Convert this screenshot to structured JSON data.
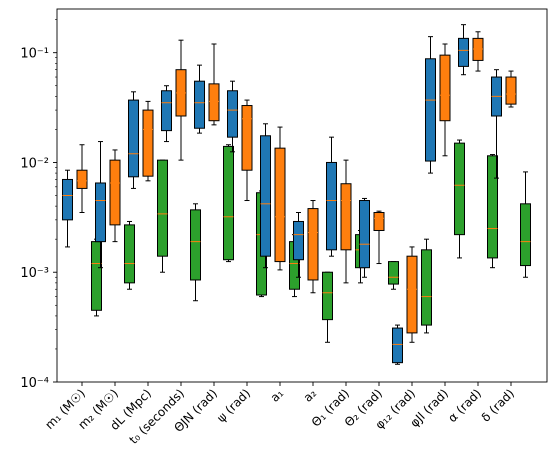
{
  "chart_data": {
    "type": "box",
    "yscale": "log",
    "ylim": [
      0.0001,
      0.25
    ],
    "y_ticks": [
      {
        "value": 0.0001,
        "label": "10⁻⁴"
      },
      {
        "value": 0.001,
        "label": "10⁻³"
      },
      {
        "value": 0.01,
        "label": "10⁻²"
      },
      {
        "value": 0.1,
        "label": "10⁻¹"
      }
    ],
    "categories": [
      "m₁ (M☉)",
      "m₂ (M☉)",
      "dL (Mpc)",
      "t₀ (seconds)",
      "ΘJN (rad)",
      "ψ (rad)",
      "a₁",
      "a₂",
      "Θ₁ (rad)",
      "Θ₂ (rad)",
      "φ₁₂ (rad)",
      "φJl (rad)",
      "α (rad)",
      "δ (rad)"
    ],
    "series_colors": [
      "#1f77b4",
      "#ff7f0e",
      "#2ca02c"
    ],
    "median_color": "#ff7f0e",
    "grid": false,
    "legend": "none",
    "boxes": [
      [
        {
          "whislo": 0.0017,
          "q1": 0.003,
          "med": 0.005,
          "q3": 0.007,
          "whishi": 0.0085
        },
        {
          "whislo": 0.0035,
          "q1": 0.0058,
          "med": 0.0068,
          "q3": 0.0085,
          "whishi": 0.0145
        },
        {
          "whislo": 0.0004,
          "q1": 0.00045,
          "med": 0.0012,
          "q3": 0.0019,
          "whishi": 0.002
        }
      ],
      [
        {
          "whislo": 0.0011,
          "q1": 0.0019,
          "med": 0.0045,
          "q3": 0.0065,
          "whishi": 0.0155
        },
        {
          "whislo": 0.0019,
          "q1": 0.0027,
          "med": 0.0065,
          "q3": 0.0105,
          "whishi": 0.013
        },
        {
          "whislo": 0.0007,
          "q1": 0.0008,
          "med": 0.0012,
          "q3": 0.0027,
          "whishi": 0.0029
        }
      ],
      [
        {
          "whislo": 0.0058,
          "q1": 0.0074,
          "med": 0.012,
          "q3": 0.037,
          "whishi": 0.044
        },
        {
          "whislo": 0.0068,
          "q1": 0.0075,
          "med": 0.02,
          "q3": 0.03,
          "whishi": 0.036
        },
        {
          "whislo": 0.001,
          "q1": 0.0014,
          "med": 0.0034,
          "q3": 0.0105,
          "whishi": 0.0105
        }
      ],
      [
        {
          "whislo": 0.0155,
          "q1": 0.0195,
          "med": 0.035,
          "q3": 0.045,
          "whishi": 0.05
        },
        {
          "whislo": 0.0105,
          "q1": 0.0265,
          "med": 0.043,
          "q3": 0.07,
          "whishi": 0.13
        },
        {
          "whislo": 0.00055,
          "q1": 0.00085,
          "med": 0.0019,
          "q3": 0.0037,
          "whishi": 0.0042
        }
      ],
      [
        {
          "whislo": 0.0185,
          "q1": 0.0205,
          "med": 0.035,
          "q3": 0.055,
          "whishi": 0.077
        },
        {
          "whislo": 0.022,
          "q1": 0.024,
          "med": 0.036,
          "q3": 0.052,
          "whishi": 0.12
        },
        {
          "whislo": 0.00125,
          "q1": 0.0013,
          "med": 0.0032,
          "q3": 0.014,
          "whishi": 0.0145
        }
      ],
      [
        {
          "whislo": 0.0125,
          "q1": 0.017,
          "med": 0.03,
          "q3": 0.045,
          "whishi": 0.055
        },
        {
          "whislo": 0.0045,
          "q1": 0.0085,
          "med": 0.025,
          "q3": 0.033,
          "whishi": 0.037
        },
        {
          "whislo": 0.0006,
          "q1": 0.00062,
          "med": 0.0022,
          "q3": 0.0053,
          "whishi": 0.0055
        }
      ],
      [
        {
          "whislo": 0.0011,
          "q1": 0.0014,
          "med": 0.0042,
          "q3": 0.0175,
          "whishi": 0.0225
        },
        {
          "whislo": 0.00105,
          "q1": 0.00125,
          "med": 0.0032,
          "q3": 0.0135,
          "whishi": 0.021
        },
        {
          "whislo": 0.0006,
          "q1": 0.0007,
          "med": 0.0012,
          "q3": 0.0019,
          "whishi": 0.0022
        }
      ],
      [
        {
          "whislo": 0.0009,
          "q1": 0.0013,
          "med": 0.0022,
          "q3": 0.0029,
          "whishi": 0.0035
        },
        {
          "whislo": 0.00065,
          "q1": 0.00085,
          "med": 0.0023,
          "q3": 0.0038,
          "whishi": 0.0045
        },
        {
          "whislo": 0.00023,
          "q1": 0.00037,
          "med": 0.00065,
          "q3": 0.001,
          "whishi": 0.001
        }
      ],
      [
        {
          "whislo": 0.0014,
          "q1": 0.0016,
          "med": 0.0045,
          "q3": 0.01,
          "whishi": 0.017
        },
        {
          "whislo": 0.0008,
          "q1": 0.0016,
          "med": 0.0045,
          "q3": 0.0064,
          "whishi": 0.0105
        },
        {
          "whislo": 0.0008,
          "q1": 0.0011,
          "med": 0.0016,
          "q3": 0.0022,
          "whishi": 0.0024
        }
      ],
      [
        {
          "whislo": 0.0009,
          "q1": 0.0011,
          "med": 0.0018,
          "q3": 0.0045,
          "whishi": 0.0047
        },
        {
          "whislo": 0.0012,
          "q1": 0.0024,
          "med": 0.0031,
          "q3": 0.0035,
          "whishi": 0.0036
        },
        {
          "whislo": 0.0007,
          "q1": 0.00078,
          "med": 0.0009,
          "q3": 0.00125,
          "whishi": 0.00125
        }
      ],
      [
        {
          "whislo": 0.000145,
          "q1": 0.00015,
          "med": 0.00022,
          "q3": 0.00031,
          "whishi": 0.00033
        },
        {
          "whislo": 0.00023,
          "q1": 0.00028,
          "med": 0.0007,
          "q3": 0.0014,
          "whishi": 0.0017
        },
        {
          "whislo": 0.00028,
          "q1": 0.00033,
          "med": 0.0006,
          "q3": 0.0016,
          "whishi": 0.002
        }
      ],
      [
        {
          "whislo": 0.008,
          "q1": 0.0103,
          "med": 0.037,
          "q3": 0.088,
          "whishi": 0.14
        },
        {
          "whislo": 0.0115,
          "q1": 0.024,
          "med": 0.041,
          "q3": 0.095,
          "whishi": 0.12
        },
        {
          "whislo": 0.00135,
          "q1": 0.0022,
          "med": 0.0062,
          "q3": 0.015,
          "whishi": 0.016
        }
      ],
      [
        {
          "whislo": 0.063,
          "q1": 0.075,
          "med": 0.105,
          "q3": 0.135,
          "whishi": 0.18
        },
        {
          "whislo": 0.068,
          "q1": 0.085,
          "med": 0.108,
          "q3": 0.135,
          "whishi": 0.155
        },
        {
          "whislo": 0.0011,
          "q1": 0.00135,
          "med": 0.0025,
          "q3": 0.0115,
          "whishi": 0.0118
        }
      ],
      [
        {
          "whislo": 0.0072,
          "q1": 0.0265,
          "med": 0.04,
          "q3": 0.06,
          "whishi": 0.07
        },
        {
          "whislo": 0.032,
          "q1": 0.034,
          "med": 0.042,
          "q3": 0.06,
          "whishi": 0.068
        },
        {
          "whislo": 0.0009,
          "q1": 0.00115,
          "med": 0.0019,
          "q3": 0.0042,
          "whishi": 0.0082
        }
      ]
    ]
  }
}
